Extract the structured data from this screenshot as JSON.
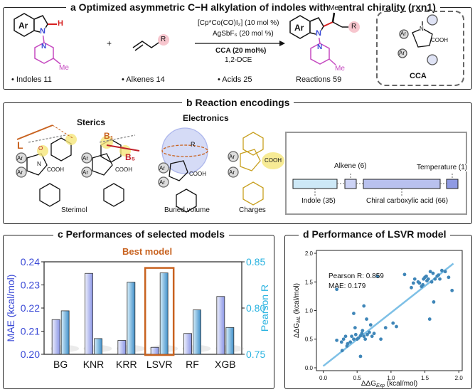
{
  "panel_a": {
    "title": "a Optimized asymmetric C−H alkylation of indoles with central chirality (rxn1)",
    "atoms": {
      "ar": "Ar",
      "n": "N",
      "h": "H",
      "me": "Me",
      "r": "R"
    },
    "plus": "+",
    "conditions": {
      "catalyst": "[Cp*Co(CO)I₂] (10 mol %)",
      "additive": "AgSbF₆ (20 mol %)",
      "acid": "CCA (20 mol%)",
      "solvent": "1,2-DCE"
    },
    "counts": {
      "indoles": "• Indoles 11",
      "alkenes": "• Alkenes 14",
      "acids": "• Acids 25",
      "reactions": "Reactions 59"
    },
    "cca_label": "CCA",
    "cca_cooh": "COOH"
  },
  "panel_b": {
    "title": "b Reaction encodings",
    "sterics": "Sterics",
    "electronics": "Electronics",
    "labels": {
      "l": "L",
      "b1": "B₁",
      "b5": "B₅",
      "r": "R",
      "cooh": "COOH",
      "ar": "Ar",
      "n": "N",
      "o": "O"
    },
    "methods": [
      "Sterimol",
      "Buried volume",
      "Charges"
    ],
    "encoding": {
      "indole": "Indole (35)",
      "alkene": "Alkene (6)",
      "acid": "Chiral carboxylic acid (66)",
      "temperature": "Temperature (1)"
    }
  },
  "panel_c": {
    "title": "c Performances of selected models",
    "best_label": "Best model",
    "best_color": "#c8621f",
    "mae_color": "#3a49d6",
    "pearson_color": "#2ab3e0"
  },
  "panel_d": {
    "title": "d Performance of LSVR model",
    "pearson_text": "Pearson R: 0.859",
    "mae_text": "MAE: 0.179",
    "point_color": "#3f86b8",
    "line_color": "#7ec0e6"
  },
  "chart_data": [
    {
      "type": "bar",
      "title": "c Performances of selected models",
      "categories": [
        "BG",
        "KNR",
        "KRR",
        "LSVR",
        "RF",
        "XGB"
      ],
      "series": [
        {
          "name": "MAE (kcal/mol)",
          "axis": "left",
          "values": [
            0.215,
            0.235,
            0.206,
            0.203,
            0.209,
            0.225
          ]
        },
        {
          "name": "Pearson R",
          "axis": "right",
          "values": [
            0.797,
            0.767,
            0.828,
            0.838,
            0.798,
            0.779
          ]
        }
      ],
      "ylabel": "MAE (kcal/mol)",
      "ylabel_right": "Pearson R",
      "ylim": [
        0.2,
        0.24
      ],
      "ylim_right": [
        0.75,
        0.85
      ],
      "yticks": [
        "0.20",
        "0.21",
        "0.22",
        "0.23",
        "0.24"
      ],
      "yticks_right": [
        "0.75",
        "0.80",
        "0.85"
      ],
      "highlight": "LSVR"
    },
    {
      "type": "scatter",
      "title": "d Performance of LSVR model",
      "xlabel": "ΔΔG",
      "xlabel_sub": "Exp",
      "xlabel_unit": " (kcal/mol)",
      "ylabel": "ΔΔG",
      "ylabel_sub": "ML",
      "ylabel_unit": " (kcal/mol)",
      "xlim": [
        -0.1,
        2.05
      ],
      "ylim": [
        -0.05,
        2.05
      ],
      "xticks": [
        "0.0",
        "0.5",
        "1.0",
        "1.5",
        "2.0"
      ],
      "yticks": [
        "0.0",
        "0.5",
        "1.0",
        "1.5",
        "2.0"
      ],
      "fit_line": {
        "x": [
          0.0,
          1.92
        ],
        "y": [
          0.03,
          1.82
        ]
      },
      "x": [
        0.2,
        0.27,
        0.3,
        0.33,
        0.36,
        0.4,
        0.42,
        0.45,
        0.48,
        0.5,
        0.52,
        0.55,
        0.57,
        0.6,
        0.62,
        0.65,
        0.68,
        0.7,
        0.72,
        0.75,
        0.28,
        0.35,
        0.47,
        0.58,
        0.64,
        0.2,
        0.55,
        0.8,
        0.45,
        0.85,
        0.6,
        0.92,
        1.03,
        1.08,
        1.2,
        1.3,
        1.35,
        1.4,
        1.42,
        1.45,
        1.48,
        1.5,
        1.52,
        1.55,
        1.58,
        1.6,
        1.62,
        1.65,
        1.68,
        1.7,
        1.72,
        1.75,
        1.8,
        1.85,
        1.9,
        1.57,
        1.63,
        1.33,
        1.47,
        1.53
      ],
      "y": [
        0.48,
        0.45,
        0.5,
        0.55,
        0.42,
        0.45,
        0.55,
        0.5,
        0.58,
        0.5,
        0.52,
        0.56,
        0.6,
        0.55,
        0.5,
        0.58,
        0.62,
        0.75,
        0.55,
        0.6,
        0.3,
        0.38,
        0.7,
        0.65,
        0.85,
        1.37,
        0.2,
        1.6,
        0.95,
        0.5,
        1.08,
        0.7,
        0.78,
        0.72,
        1.63,
        1.4,
        1.55,
        1.5,
        1.48,
        1.42,
        1.55,
        1.58,
        1.6,
        1.55,
        1.68,
        1.5,
        1.65,
        1.55,
        1.6,
        1.62,
        1.55,
        1.7,
        1.68,
        1.58,
        1.35,
        0.85,
        1.15,
        1.48,
        1.45,
        1.52
      ]
    }
  ]
}
